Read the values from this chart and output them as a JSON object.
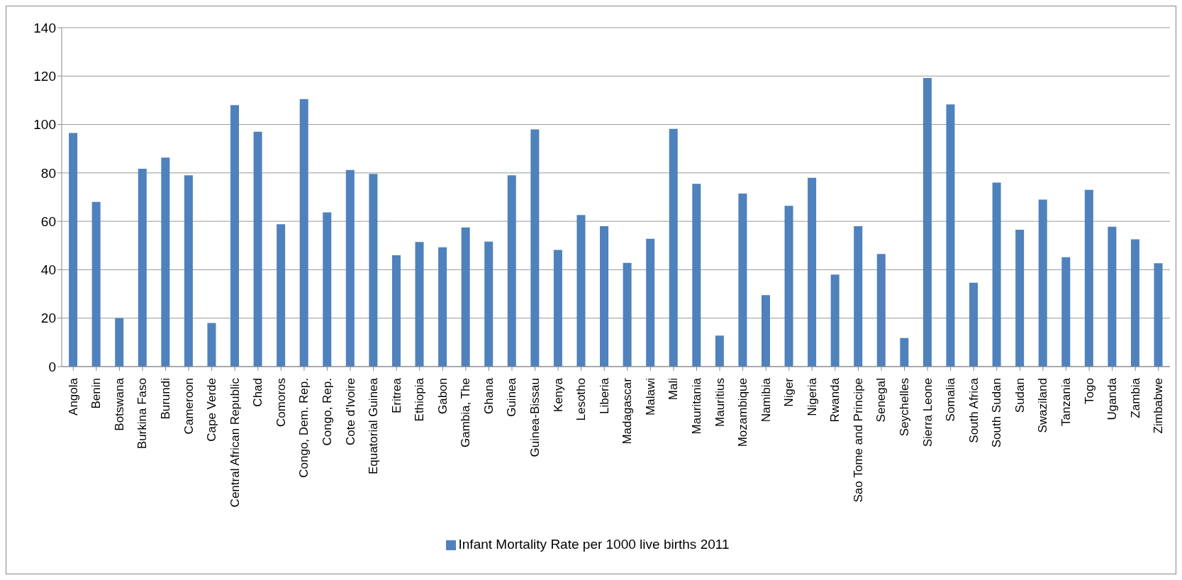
{
  "chart_data": {
    "type": "bar",
    "categories": [
      "Angola",
      "Benin",
      "Botswana",
      "Burkina Faso",
      "Burundi",
      "Cameroon",
      "Cape Verde",
      "Central African Republic",
      "Chad",
      "Comoros",
      "Congo, Dem. Rep.",
      "Congo, Rep.",
      "Cote d'Ivoire",
      "Equatorial Guinea",
      "Eritrea",
      "Ethiopia",
      "Gabon",
      "Gambia, The",
      "Ghana",
      "Guinea",
      "Guinea-Bissau",
      "Kenya",
      "Lesotho",
      "Liberia",
      "Madagascar",
      "Malawi",
      "Mali",
      "Mauritania",
      "Mauritius",
      "Mozambique",
      "Namibia",
      "Niger",
      "Nigeria",
      "Rwanda",
      "Sao Tome and Principe",
      "Senegal",
      "Seychelles",
      "Sierra Leone",
      "Somalia",
      "South Africa",
      "South Sudan",
      "Sudan",
      "Swaziland",
      "Tanzania",
      "Togo",
      "Uganda",
      "Zambia",
      "Zimbabwe"
    ],
    "series": [
      {
        "name": "Infant Mortality Rate per 1000 live births 2011",
        "color": "#4f81bd",
        "values": [
          96.5,
          68,
          20,
          81.7,
          86.3,
          79,
          18,
          108,
          97,
          58.8,
          110.5,
          63.7,
          81.2,
          79.6,
          46,
          51.5,
          49.3,
          57.5,
          51.6,
          79,
          98,
          48.2,
          62.6,
          58,
          42.8,
          52.8,
          98.2,
          75.5,
          12.8,
          71.5,
          29.5,
          66.4,
          78,
          38,
          58,
          46.5,
          11.8,
          119.2,
          108.3,
          34.6,
          76,
          56.5,
          69,
          45.2,
          73,
          57.8,
          52.6,
          42.7
        ]
      }
    ],
    "ylim": [
      0,
      140
    ],
    "yticks": [
      0,
      20,
      40,
      60,
      80,
      100,
      120,
      140
    ],
    "grid": "y",
    "legend": "bottom"
  }
}
